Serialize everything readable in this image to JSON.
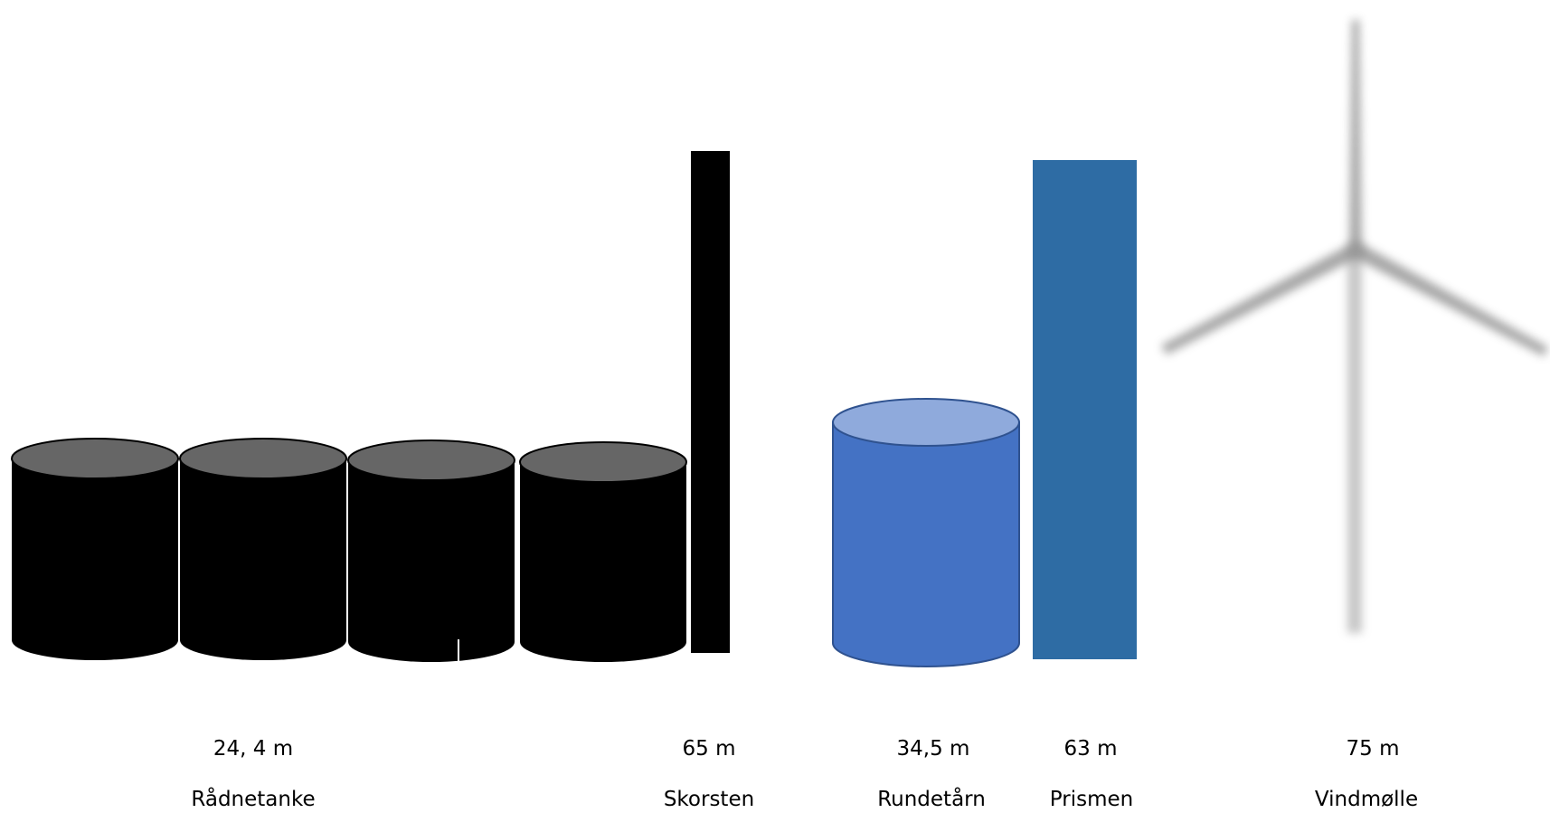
{
  "structures": [
    {
      "id": "raadnetanke",
      "name": "Rådnetanke",
      "height_label": "24, 4 m",
      "height_m": 24.4,
      "count": 4,
      "body_color": "#000000",
      "top_color": "#666666"
    },
    {
      "id": "skorsten",
      "name": "Skorsten",
      "height_label": "65 m",
      "height_m": 65,
      "body_color": "#000000"
    },
    {
      "id": "rundetaarn",
      "name": "Rundetårn",
      "height_label": "34,5 m",
      "height_m": 34.5,
      "body_color": "#4472C4",
      "top_color": "#8FAADC",
      "outline_color": "#2F528F"
    },
    {
      "id": "prismen",
      "name": "Prismen",
      "height_label": "63 m",
      "height_m": 63,
      "body_color": "#2E6CA4"
    },
    {
      "id": "vindmoelle",
      "name": "Vindmølle",
      "height_label": "75 m",
      "height_m": 75,
      "icon": "wind-turbine-icon",
      "body_color": "#BFBFBF"
    }
  ]
}
